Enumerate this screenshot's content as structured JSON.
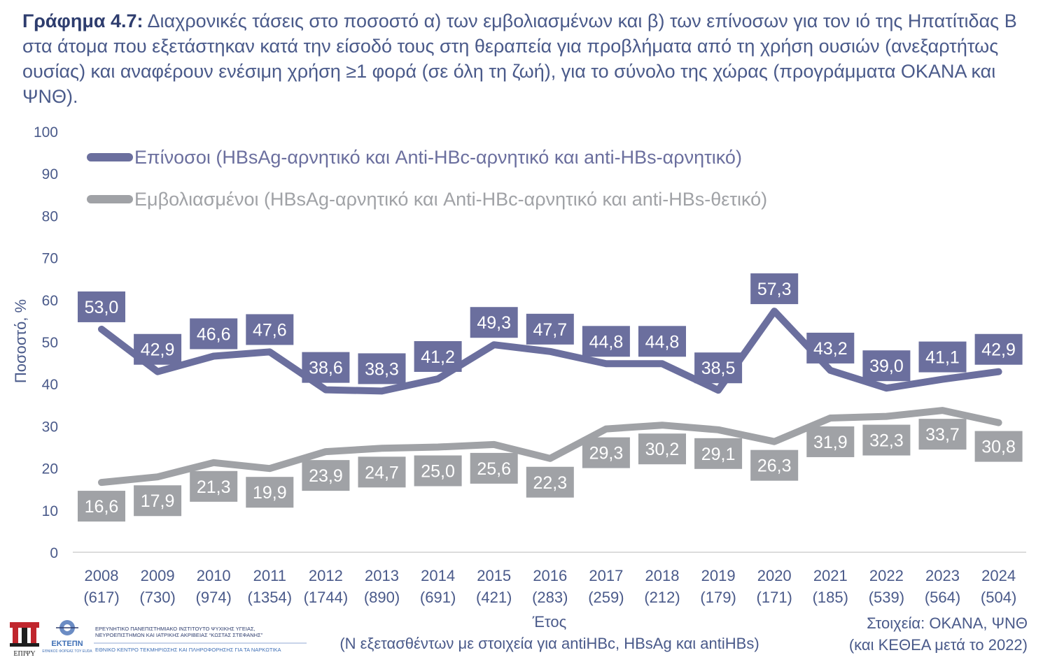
{
  "title": {
    "lead": "Γράφημα 4.7:",
    "text": "Διαχρονικές τάσεις στο ποσοστό α) των εμβολιασμένων και β) των επίνοσων για τον ιό της Ηπατίτιδας Β στα άτομα που εξετάστηκαν κατά την είσοδό τους στη θεραπεία για προβλήματα από τη χρήση ουσιών (ανεξαρτήτως ουσίας) και αναφέρουν ενέσιμη χρήση ≥1 φορά (σε όλη τη ζωή), για το σύνολο της χώρας (προγράμματα ΟΚΑΝΑ και ΨΝΘ)."
  },
  "chart_data": {
    "type": "line",
    "ylabel": "Ποσοστό, %",
    "xlabel": "Έτος",
    "xlabel_sub": "(Ν εξετασθέντων με στοιχεία για antiHBc, HBsAg και antiHBs)",
    "ylim": [
      0,
      100
    ],
    "yticks": [
      0,
      10,
      20,
      30,
      40,
      50,
      60,
      70,
      80,
      90,
      100
    ],
    "grid": false,
    "legend_position": "top-left",
    "categories": [
      "2008",
      "2009",
      "2010",
      "2011",
      "2012",
      "2013",
      "2014",
      "2015",
      "2016",
      "2017",
      "2018",
      "2019",
      "2020",
      "2021",
      "2022",
      "2023",
      "2024"
    ],
    "category_counts": [
      "(617)",
      "(730)",
      "(974)",
      "(1354)",
      "(1744)",
      "(890)",
      "(691)",
      "(421)",
      "(283)",
      "(259)",
      "(212)",
      "(179)",
      "(171)",
      "(185)",
      "(539)",
      "(564)",
      "(504)"
    ],
    "series": [
      {
        "name": "Επίνοσοι (HBsAg-αρνητικό και Anti-HBc-αρνητικό και anti-HBs-αρνητικό)",
        "color": "#6b6f9e",
        "values": [
          53.0,
          42.9,
          46.6,
          47.6,
          38.6,
          38.3,
          41.2,
          49.3,
          47.7,
          44.8,
          44.8,
          38.5,
          57.3,
          43.2,
          39.0,
          41.1,
          42.9
        ],
        "labels": [
          "53,0",
          "42,9",
          "46,6",
          "47,6",
          "38,6",
          "38,3",
          "41,2",
          "49,3",
          "47,7",
          "44,8",
          "44,8",
          "38,5",
          "57,3",
          "43,2",
          "39,0",
          "41,1",
          "42,9"
        ]
      },
      {
        "name": "Εμβολιασμένοι (HBsAg-αρνητικό και Anti-HBc-αρνητικό και anti-HBs-θετικό)",
        "color": "#a0a2a6",
        "values": [
          16.6,
          17.9,
          21.3,
          19.9,
          23.9,
          24.7,
          25.0,
          25.6,
          22.3,
          29.3,
          30.2,
          29.1,
          26.3,
          31.9,
          32.3,
          33.7,
          30.8
        ],
        "labels": [
          "16,6",
          "17,9",
          "21,3",
          "19,9",
          "23,9",
          "24,7",
          "25,0",
          "25,6",
          "22,3",
          "29,3",
          "30,2",
          "29,1",
          "26,3",
          "31,9",
          "32,3",
          "33,7",
          "30,8"
        ]
      }
    ]
  },
  "source": {
    "line1": "Στοιχεία: ΟΚΑΝΑ, ΨΝΘ",
    "line2": "(και ΚΕΘΕΑ μετά το 2022)"
  },
  "logos": {
    "epipsy_label": "ΕΠΙΨΥ",
    "ektepn_label": "ΕΚΤΕΠΝ",
    "ektepn_sub": "ΕΘΝΙΚΟΣ ΦΟΡΕΑΣ ΤΟΥ EUDA",
    "institute_line1": "ΕΡΕΥΝΗΤΙΚΟ ΠΑΝΕΠΙΣΤΗΜΙΑΚΟ ΙΝΣΤΙΤΟΥΤΟ ΨΥΧΙΚΗΣ ΥΓΕΙΑΣ,",
    "institute_line2": "ΝΕΥΡΟΕΠΙΣΤΗΜΩΝ ΚΑΙ ΙΑΤΡΙΚΗΣ ΑΚΡΙΒΕΙΑΣ “ΚΩΣΤΑΣ ΣΤΕΦΑΝΗΣ”",
    "centre_line": "ΕΘΝΙΚΟ ΚΕΝΤΡΟ ΤΕΚΜΗΡΙΩΣΗΣ ΚΑΙ ΠΛΗΡΟΦΟΡΗΣΗΣ ΓΙΑ ΤΑ ΝΑΡΚΩΤΙΚΑ"
  }
}
